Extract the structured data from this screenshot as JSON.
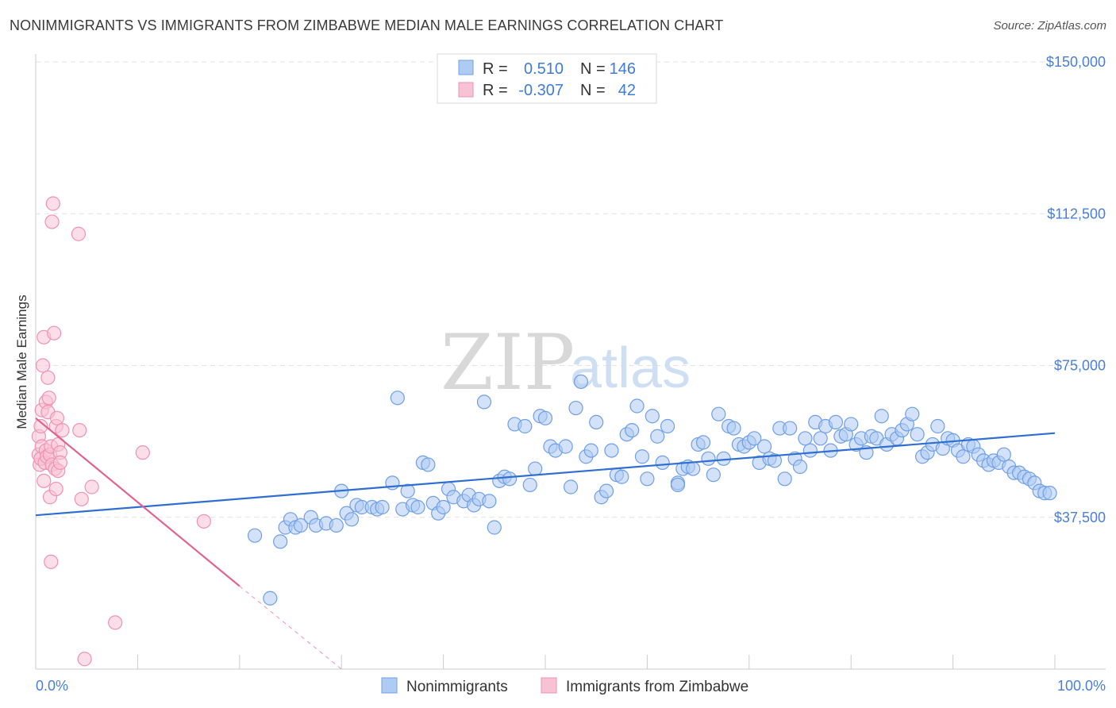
{
  "title": "NONIMMIGRANTS VS IMMIGRANTS FROM ZIMBABWE MEDIAN MALE EARNINGS CORRELATION CHART",
  "source": "Source: ZipAtlas.com",
  "watermark": {
    "zip": "ZIP",
    "atlas": "atlas"
  },
  "colors": {
    "blue": "#6e9fe6",
    "blue_fill": "#aecbf3",
    "blue_line": "#2f6fd1",
    "pink": "#ef92b2",
    "pink_fill": "#f8c2d5",
    "pink_line": "#e0628e",
    "tick_text": "#4a7fd4"
  },
  "legend": {
    "rows": [
      {
        "r_label": "R =",
        "r_value": "0.510",
        "n_label": "N =",
        "n_value": "146"
      },
      {
        "r_label": "R =",
        "r_value": "-0.307",
        "n_label": "N =",
        "n_value": "42"
      }
    ]
  },
  "bottom_legend": [
    "Nonimmigrants",
    "Immigrants from Zimbabwe"
  ],
  "chart_data": {
    "type": "scatter",
    "ylabel": "Median Male Earnings",
    "xlabel": "",
    "x_tick_labels": [
      "0.0%",
      "100.0%"
    ],
    "y_tick_labels": [
      "$37,500",
      "$75,000",
      "$112,500",
      "$150,000"
    ],
    "y_ticks": [
      37500,
      75000,
      112500,
      150000
    ],
    "xlim": [
      0,
      100
    ],
    "ylim": [
      0,
      153000
    ],
    "grid": true,
    "series": [
      {
        "name": "Nonimmigrants",
        "trend": {
          "x": [
            0,
            100
          ],
          "y": [
            38000,
            58300
          ]
        },
        "points": [
          [
            21.5,
            33
          ],
          [
            24,
            31.5
          ],
          [
            24.5,
            35
          ],
          [
            25,
            37
          ],
          [
            25.5,
            35
          ],
          [
            26,
            35.5
          ],
          [
            27,
            37.5
          ],
          [
            27.5,
            35.5
          ],
          [
            28.5,
            36
          ],
          [
            29.5,
            35.5
          ],
          [
            30,
            44
          ],
          [
            30.5,
            38.5
          ],
          [
            31,
            37
          ],
          [
            31.5,
            40.5
          ],
          [
            32,
            40
          ],
          [
            33,
            40
          ],
          [
            33.5,
            39.5
          ],
          [
            34,
            40
          ],
          [
            35,
            46
          ],
          [
            35.5,
            67
          ],
          [
            36,
            39.5
          ],
          [
            36.5,
            44
          ],
          [
            37,
            40.5
          ],
          [
            37.5,
            40
          ],
          [
            38,
            51
          ],
          [
            38.5,
            50.5
          ],
          [
            39,
            41
          ],
          [
            39.5,
            38.5
          ],
          [
            40,
            40
          ],
          [
            40.5,
            44.5
          ],
          [
            41,
            42.5
          ],
          [
            42,
            41.5
          ],
          [
            42.5,
            43
          ],
          [
            43,
            40.5
          ],
          [
            43.5,
            42
          ],
          [
            44,
            66
          ],
          [
            44.5,
            41.5
          ],
          [
            45,
            35
          ],
          [
            45.5,
            46.5
          ],
          [
            46,
            47.5
          ],
          [
            46.5,
            47
          ],
          [
            47,
            60.5
          ],
          [
            48,
            60
          ],
          [
            48.5,
            45.5
          ],
          [
            49,
            49.5
          ],
          [
            49.5,
            62.5
          ],
          [
            50,
            62
          ],
          [
            50.5,
            55
          ],
          [
            51,
            54
          ],
          [
            52,
            55
          ],
          [
            52.5,
            45
          ],
          [
            53,
            64.5
          ],
          [
            53.5,
            71
          ],
          [
            54,
            52.5
          ],
          [
            54.5,
            54
          ],
          [
            55,
            61
          ],
          [
            55.5,
            42.5
          ],
          [
            56,
            44
          ],
          [
            56.5,
            54
          ],
          [
            57,
            48
          ],
          [
            57.5,
            47.5
          ],
          [
            58,
            58
          ],
          [
            58.5,
            59
          ],
          [
            59,
            65
          ],
          [
            59.5,
            52.5
          ],
          [
            60,
            47
          ],
          [
            60.5,
            62.5
          ],
          [
            61,
            57.5
          ],
          [
            61.5,
            51
          ],
          [
            62,
            60
          ],
          [
            63,
            46
          ],
          [
            63.5,
            49.5
          ],
          [
            64,
            50
          ],
          [
            64.5,
            49.5
          ],
          [
            65,
            55.5
          ],
          [
            65.5,
            56
          ],
          [
            66,
            52
          ],
          [
            66.5,
            48
          ],
          [
            67,
            63
          ],
          [
            67.5,
            52
          ],
          [
            68,
            60
          ],
          [
            68.5,
            59.5
          ],
          [
            69,
            55.5
          ],
          [
            69.5,
            55
          ],
          [
            70,
            56
          ],
          [
            70.5,
            57
          ],
          [
            71,
            51
          ],
          [
            71.5,
            55
          ],
          [
            72,
            52
          ],
          [
            72.5,
            51.5
          ],
          [
            73,
            59.5
          ],
          [
            73.5,
            47
          ],
          [
            74,
            59.5
          ],
          [
            74.5,
            52
          ],
          [
            75,
            50
          ],
          [
            75.5,
            57
          ],
          [
            76,
            54
          ],
          [
            76.5,
            61
          ],
          [
            77,
            57
          ],
          [
            77.5,
            60
          ],
          [
            78,
            54
          ],
          [
            78.5,
            61
          ],
          [
            79,
            57.5
          ],
          [
            79.5,
            58
          ],
          [
            80,
            60.5
          ],
          [
            80.5,
            55.5
          ],
          [
            81,
            57
          ],
          [
            81.5,
            53.5
          ],
          [
            82,
            57.5
          ],
          [
            82.5,
            57
          ],
          [
            83,
            62.5
          ],
          [
            83.5,
            55.5
          ],
          [
            84,
            58
          ],
          [
            84.5,
            57
          ],
          [
            85,
            59
          ],
          [
            85.5,
            60.5
          ],
          [
            86,
            63
          ],
          [
            86.5,
            58
          ],
          [
            87,
            52.5
          ],
          [
            87.5,
            53.5
          ],
          [
            88,
            55.5
          ],
          [
            88.5,
            60
          ],
          [
            89,
            54.5
          ],
          [
            89.5,
            57
          ],
          [
            90,
            56.5
          ],
          [
            90.5,
            54
          ],
          [
            91,
            52.5
          ],
          [
            91.5,
            55.5
          ],
          [
            92,
            55
          ],
          [
            92.5,
            53
          ],
          [
            93,
            51.5
          ],
          [
            93.5,
            50.5
          ],
          [
            94,
            51.5
          ],
          [
            94.5,
            51
          ],
          [
            95,
            53
          ],
          [
            95.5,
            50
          ],
          [
            96,
            48.5
          ],
          [
            96.5,
            48.5
          ],
          [
            97,
            47.5
          ],
          [
            97.5,
            47
          ],
          [
            98,
            46
          ],
          [
            98.5,
            44
          ],
          [
            99,
            43.5
          ],
          [
            99.5,
            43.5
          ],
          [
            23,
            17.5
          ],
          [
            63,
            45.5
          ]
        ]
      },
      {
        "name": "Immigrants from Zimbabwe",
        "trend": {
          "x": [
            0,
            20
          ],
          "y": [
            62000,
            20500
          ]
        },
        "trend_dashed": {
          "x": [
            20,
            30
          ],
          "y": [
            20500,
            0
          ]
        },
        "points": [
          [
            0.3,
            53
          ],
          [
            0.3,
            57.5
          ],
          [
            0.4,
            50.5
          ],
          [
            0.5,
            60
          ],
          [
            0.5,
            52
          ],
          [
            0.6,
            55
          ],
          [
            0.6,
            64
          ],
          [
            0.7,
            75
          ],
          [
            0.8,
            82
          ],
          [
            0.8,
            46.5
          ],
          [
            0.9,
            51
          ],
          [
            1,
            54
          ],
          [
            1,
            66
          ],
          [
            1.1,
            52.5
          ],
          [
            1.2,
            63.5
          ],
          [
            1.2,
            72
          ],
          [
            1.3,
            67
          ],
          [
            1.4,
            53
          ],
          [
            1.4,
            42.5
          ],
          [
            1.5,
            55
          ],
          [
            1.5,
            26.5
          ],
          [
            1.6,
            110.5
          ],
          [
            1.6,
            50.5
          ],
          [
            1.7,
            115
          ],
          [
            1.8,
            83
          ],
          [
            1.9,
            49.5
          ],
          [
            2,
            60
          ],
          [
            2,
            44.5
          ],
          [
            2.1,
            62
          ],
          [
            2.2,
            55.5
          ],
          [
            2.2,
            49
          ],
          [
            2.4,
            53.5
          ],
          [
            2.4,
            51
          ],
          [
            2.6,
            59
          ],
          [
            4.2,
            107.5
          ],
          [
            4.3,
            59
          ],
          [
            4.5,
            42
          ],
          [
            4.8,
            2.5
          ],
          [
            5.5,
            45
          ],
          [
            7.8,
            11.5
          ],
          [
            10.5,
            53.5
          ],
          [
            16.5,
            36.5
          ]
        ]
      }
    ]
  }
}
